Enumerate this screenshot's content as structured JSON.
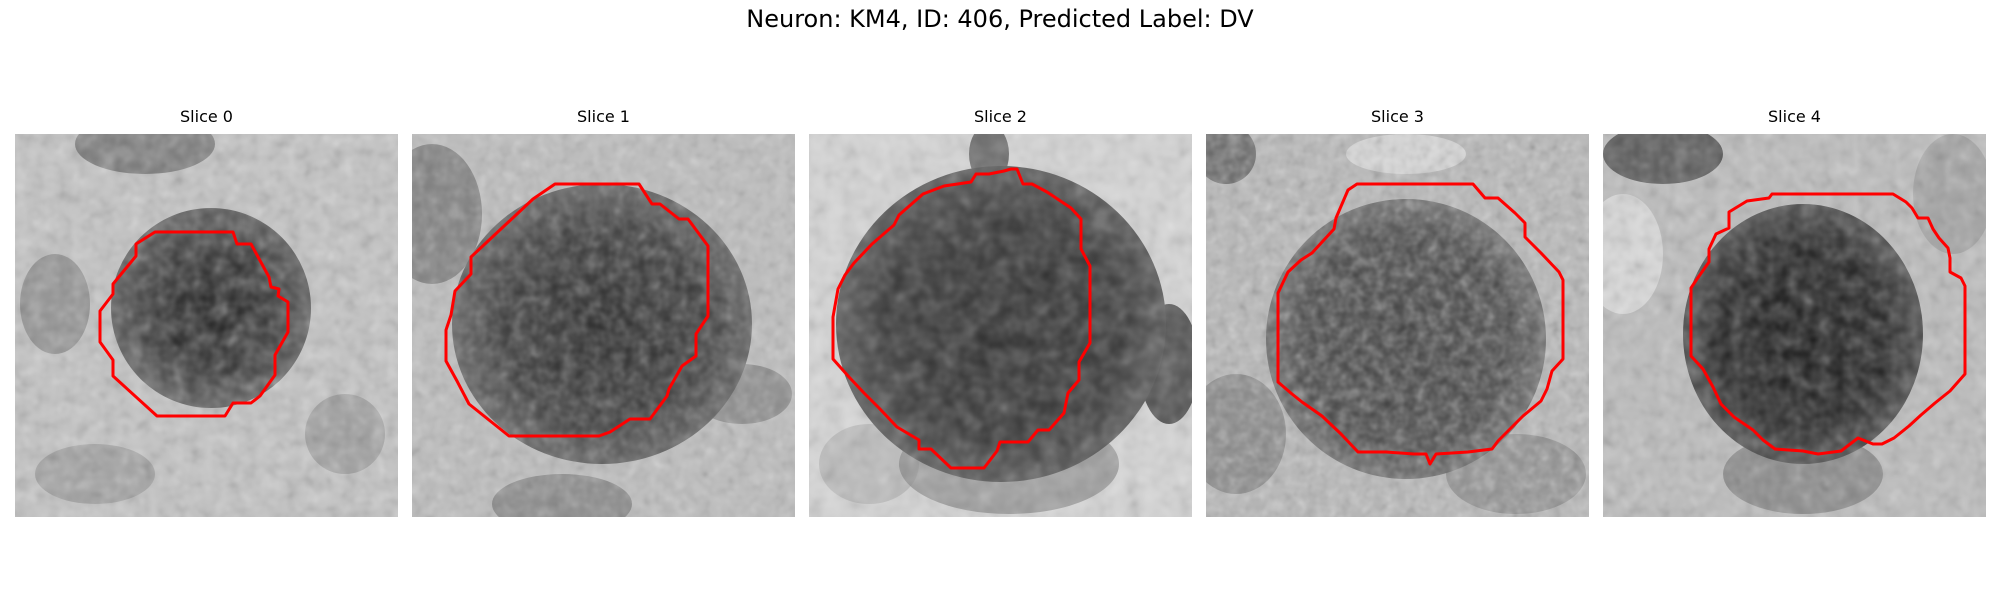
{
  "figure": {
    "title": "Neuron: KM4, ID: 406, Predicted Label: DV",
    "contour_color": "#ff0000",
    "colormap": "grayscale",
    "panels": [
      {
        "title": "Slice 0"
      },
      {
        "title": "Slice 1"
      },
      {
        "title": "Slice 2"
      },
      {
        "title": "Slice 3"
      },
      {
        "title": "Slice 4"
      }
    ]
  }
}
